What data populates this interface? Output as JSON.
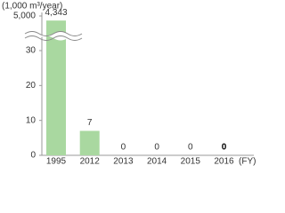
{
  "chart_data": {
    "type": "bar",
    "y_label": "(1,000 m³/year)",
    "x_label": "(FY)",
    "categories": [
      "1995",
      "2012",
      "2013",
      "2014",
      "2015",
      "2016"
    ],
    "values": [
      4343,
      7,
      0,
      0,
      0,
      0
    ],
    "value_labels": [
      "4,343",
      "7",
      "0",
      "0",
      "0",
      "0"
    ],
    "color": "#a9d8a0",
    "ylim": [
      0,
      5000
    ],
    "yticks": [
      0,
      10,
      20,
      30,
      {
        "value": 5000,
        "label": "5,000"
      }
    ],
    "axis_break": true
  }
}
